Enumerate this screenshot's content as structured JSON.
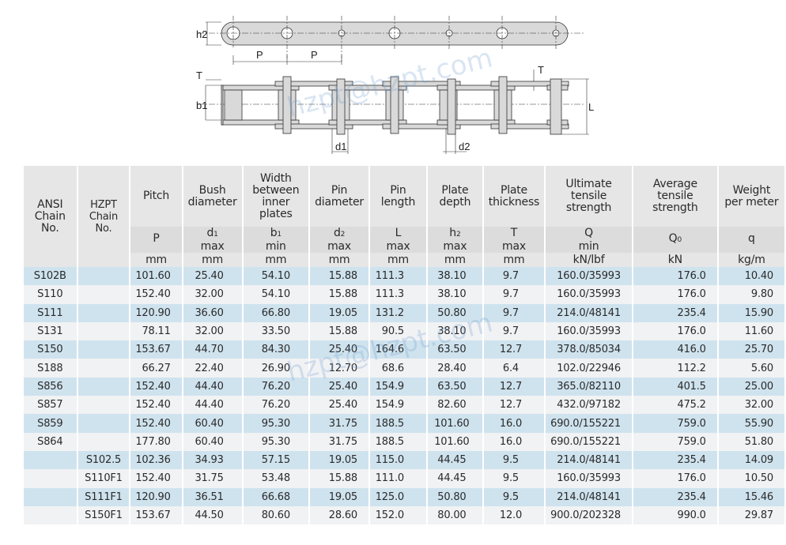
{
  "diagram": {
    "labels": {
      "h2": "h2",
      "P1": "P",
      "P2": "P",
      "T_left": "T",
      "b1": "b1",
      "T_right": "T",
      "L": "L",
      "d1": "d1",
      "d2": "d2"
    },
    "watermark": "hzpt@hzpt.com"
  },
  "table": {
    "headers": {
      "ansi": "ANSI Chain No.",
      "hzpt": "HZPT Chain No.",
      "columns": [
        {
          "name": "Pitch",
          "symbol": "P",
          "sub": "",
          "limit": "",
          "unit": "mm"
        },
        {
          "name": "Bush diameter",
          "symbol": "d",
          "sub": "1",
          "limit": "max",
          "unit": "mm"
        },
        {
          "name": "Width between inner plates",
          "symbol": "b",
          "sub": "1",
          "limit": "min",
          "unit": "mm"
        },
        {
          "name": "Pin diameter",
          "symbol": "d",
          "sub": "2",
          "limit": "max",
          "unit": "mm"
        },
        {
          "name": "Pin length",
          "symbol": "L",
          "sub": "",
          "limit": "max",
          "unit": "mm"
        },
        {
          "name": "Plate depth",
          "symbol": "h",
          "sub": "2",
          "limit": "max",
          "unit": "mm"
        },
        {
          "name": "Plate thickness",
          "symbol": "T",
          "sub": "",
          "limit": "max",
          "unit": "mm"
        },
        {
          "name": "Ultimate tensile strength",
          "symbol": "Q",
          "sub": "",
          "limit": "min",
          "unit": "kN/lbf"
        },
        {
          "name": "Average tensile strength",
          "symbol": "Q",
          "sub": "0",
          "limit": "",
          "unit": "kN"
        },
        {
          "name": "Weight per meter",
          "symbol": "q",
          "sub": "",
          "limit": "",
          "unit": "kg/m"
        }
      ]
    },
    "rows": [
      [
        "S102B",
        "",
        "101.60",
        "25.40",
        "54.10",
        "15.88",
        "111.3",
        "38.10",
        "9.7",
        "160.0/35993",
        "176.0",
        "10.40"
      ],
      [
        "S110",
        "",
        "152.40",
        "32.00",
        "54.10",
        "15.88",
        "111.3",
        "38.10",
        "9.7",
        "160.0/35993",
        "176.0",
        "9.80"
      ],
      [
        "S111",
        "",
        "120.90",
        "36.60",
        "66.80",
        "19.05",
        "131.2",
        "50.80",
        "9.7",
        "214.0/48141",
        "235.4",
        "15.90"
      ],
      [
        "S131",
        "",
        "78.11",
        "32.00",
        "33.50",
        "15.88",
        "90.5",
        "38.10",
        "9.7",
        "160.0/35993",
        "176.0",
        "11.60"
      ],
      [
        "S150",
        "",
        "153.67",
        "44.70",
        "84.30",
        "25.40",
        "164.6",
        "63.50",
        "12.7",
        "378.0/85034",
        "416.0",
        "25.70"
      ],
      [
        "S188",
        "",
        "66.27",
        "22.40",
        "26.90",
        "12.70",
        "68.6",
        "28.40",
        "6.4",
        "102.0/22946",
        "112.2",
        "5.60"
      ],
      [
        "S856",
        "",
        "152.40",
        "44.40",
        "76.20",
        "25.40",
        "154.9",
        "63.50",
        "12.7",
        "365.0/82110",
        "401.5",
        "25.00"
      ],
      [
        "S857",
        "",
        "152.40",
        "44.40",
        "76.20",
        "25.40",
        "154.9",
        "82.60",
        "12.7",
        "432.0/97182",
        "475.2",
        "32.00"
      ],
      [
        "S859",
        "",
        "152.40",
        "60.40",
        "95.30",
        "31.75",
        "188.5",
        "101.60",
        "16.0",
        "690.0/155221",
        "759.0",
        "55.90"
      ],
      [
        "S864",
        "",
        "177.80",
        "60.40",
        "95.30",
        "31.75",
        "188.5",
        "101.60",
        "16.0",
        "690.0/155221",
        "759.0",
        "51.80"
      ],
      [
        "",
        "S102.5",
        "102.36",
        "34.93",
        "57.15",
        "19.05",
        "115.0",
        "44.45",
        "9.5",
        "214.0/48141",
        "235.4",
        "14.09"
      ],
      [
        "",
        "S110F1",
        "152.40",
        "31.75",
        "53.48",
        "15.88",
        "111.0",
        "44.45",
        "9.5",
        "160.0/35993",
        "176.0",
        "10.50"
      ],
      [
        "",
        "S111F1",
        "120.90",
        "36.51",
        "66.68",
        "19.05",
        "125.0",
        "50.80",
        "9.5",
        "214.0/48141",
        "235.4",
        "15.46"
      ],
      [
        "",
        "S150F1",
        "153.67",
        "44.50",
        "80.60",
        "28.60",
        "152.0",
        "80.00",
        "12.0",
        "900.0/202328",
        "990.0",
        "29.87"
      ]
    ]
  }
}
